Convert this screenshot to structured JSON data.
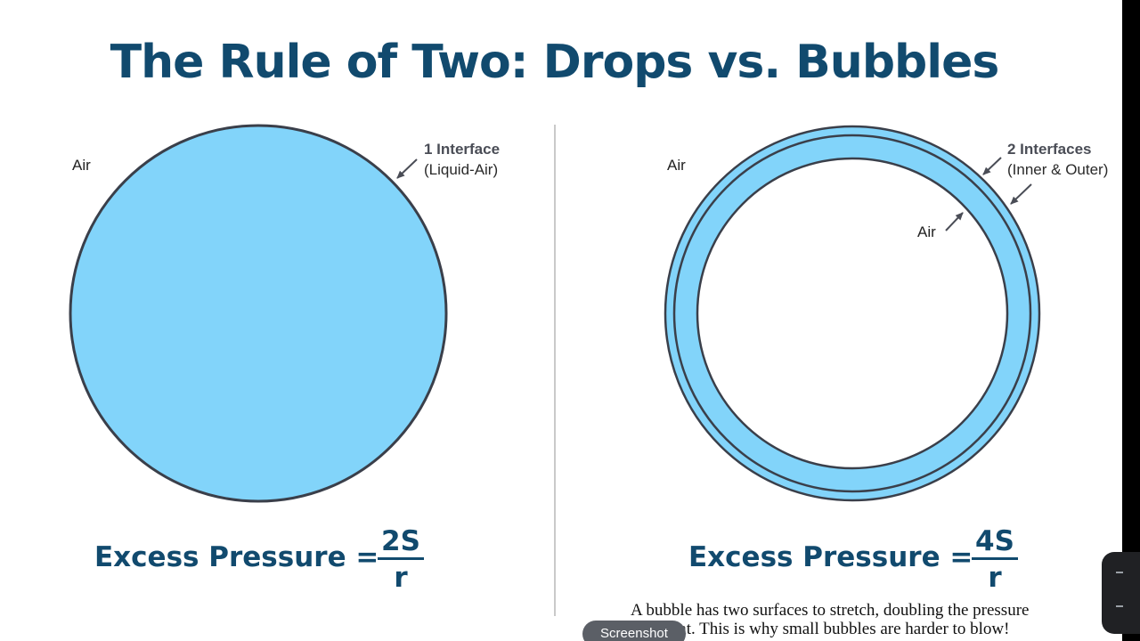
{
  "title": "The Rule of Two: Drops vs. Bubbles",
  "drop": {
    "air_label": "Air",
    "interface_title": "1 Interface",
    "interface_sub": "(Liquid-Air)",
    "formula_label": "Excess Pressure =",
    "numerator": "2S",
    "denominator": "r"
  },
  "bubble": {
    "air_outer_label": "Air",
    "air_inner_label": "Air",
    "interface_title": "2 Interfaces",
    "interface_sub": "(Inner & Outer)",
    "formula_label": "Excess Pressure =",
    "numerator": "4S",
    "denominator": "r"
  },
  "note": {
    "line1": "A bubble has two surfaces to stretch, doubling the pressure",
    "line2": "ment. This is why small bubbles are harder to blow!"
  },
  "overlay": {
    "screenshot_label": "Screenshot"
  },
  "colors": {
    "title": "#114a6e",
    "fill": "#82d4fa",
    "outline": "#3a3f4a",
    "background": "#ffffff"
  },
  "icons": {
    "callout_arrow": "arrow-icon"
  }
}
